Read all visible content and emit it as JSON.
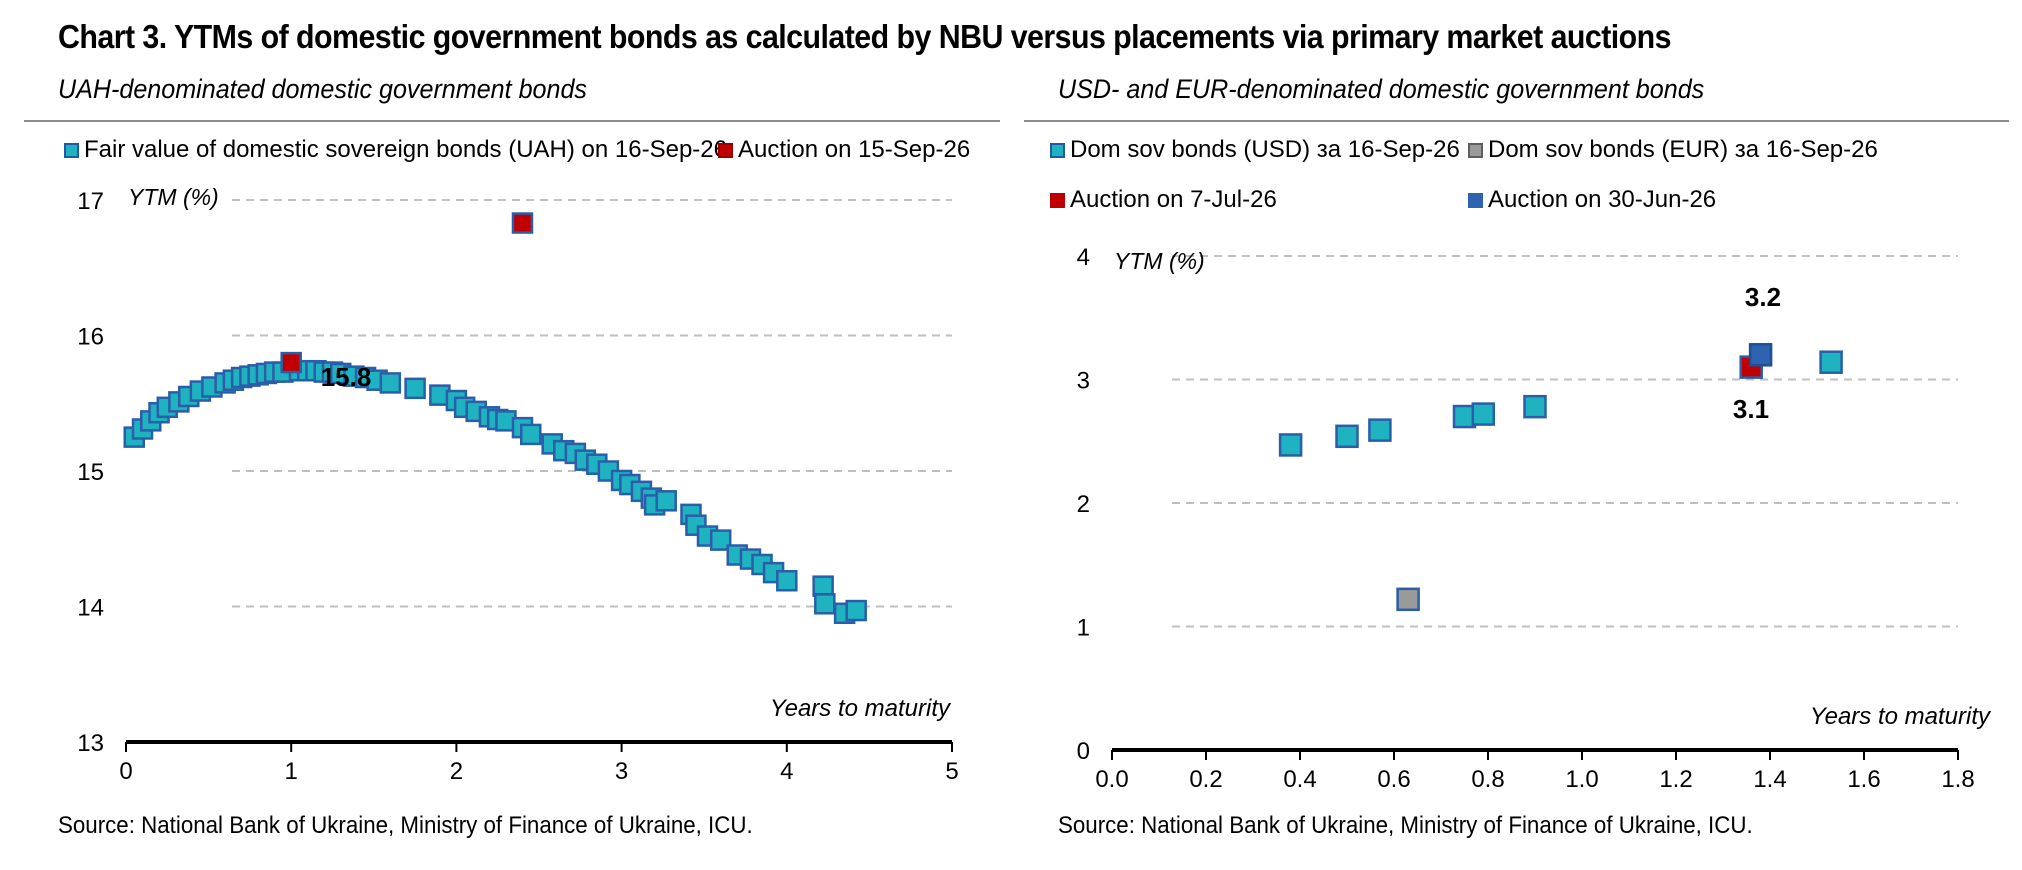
{
  "title": "Chart 3. YTMs of domestic government bonds as calculated by NBU versus placements via primary market auctions",
  "colors": {
    "fill_teal": "#1fb3c1",
    "edge_blue": "#2a5ea8",
    "red": "#c00000",
    "gray": "#9a9a9a",
    "blue": "#2e63b0",
    "grid": "#bfbfbf"
  },
  "left_panel": {
    "subtitle": "UAH-denominated domestic government bonds",
    "source": "Source: National Bank of Ukraine, Ministry of Finance of Ukraine, ICU.",
    "legend": [
      {
        "label": "Fair value of domestic sovereign bonds (UAH) on 16-Sep-26",
        "swatch": "teal"
      },
      {
        "label": "Auction on 15-Sep-26",
        "swatch": "red"
      }
    ]
  },
  "right_panel": {
    "subtitle": "USD- and EUR-denominated domestic government bonds",
    "source": "Source: National Bank of Ukraine, Ministry of Finance of Ukraine, ICU.",
    "legend": [
      {
        "label": "Dom sov bonds (USD) за 16-Sep-26",
        "swatch": "teal"
      },
      {
        "label": "Dom sov bonds (EUR) за 16-Sep-26",
        "swatch": "gray"
      },
      {
        "label": "Auction on 7-Jul-26",
        "swatch": "red"
      },
      {
        "label": "Auction on 30-Jun-26",
        "swatch": "blue"
      }
    ]
  },
  "chart_data": [
    {
      "type": "scatter",
      "ylabel": "YTM (%)",
      "xlabel": "Years to maturity",
      "xlim": [
        0,
        5
      ],
      "ylim": [
        13,
        17
      ],
      "xticks": [
        0,
        1,
        2,
        3,
        4,
        5
      ],
      "yticks": [
        13,
        14,
        15,
        16,
        17
      ],
      "grid": true,
      "series": [
        {
          "name": "Fair value of domestic sovereign bonds (UAH) on 16-Sep-26",
          "color": "teal",
          "points": [
            [
              0.05,
              15.25
            ],
            [
              0.1,
              15.31
            ],
            [
              0.15,
              15.37
            ],
            [
              0.2,
              15.43
            ],
            [
              0.25,
              15.47
            ],
            [
              0.32,
              15.51
            ],
            [
              0.38,
              15.55
            ],
            [
              0.45,
              15.59
            ],
            [
              0.52,
              15.62
            ],
            [
              0.6,
              15.65
            ],
            [
              0.65,
              15.67
            ],
            [
              0.7,
              15.69
            ],
            [
              0.75,
              15.7
            ],
            [
              0.8,
              15.71
            ],
            [
              0.85,
              15.72
            ],
            [
              0.9,
              15.73
            ],
            [
              0.95,
              15.73
            ],
            [
              1.05,
              15.74
            ],
            [
              1.1,
              15.74
            ],
            [
              1.15,
              15.74
            ],
            [
              1.2,
              15.73
            ],
            [
              1.25,
              15.73
            ],
            [
              1.3,
              15.72
            ],
            [
              1.38,
              15.7
            ],
            [
              1.45,
              15.69
            ],
            [
              1.52,
              15.67
            ],
            [
              1.6,
              15.65
            ],
            [
              1.75,
              15.61
            ],
            [
              1.9,
              15.56
            ],
            [
              2.0,
              15.52
            ],
            [
              2.05,
              15.47
            ],
            [
              2.12,
              15.44
            ],
            [
              2.2,
              15.4
            ],
            [
              2.25,
              15.38
            ],
            [
              2.3,
              15.37
            ],
            [
              2.4,
              15.32
            ],
            [
              2.45,
              15.27
            ],
            [
              2.58,
              15.2
            ],
            [
              2.65,
              15.15
            ],
            [
              2.72,
              15.13
            ],
            [
              2.78,
              15.08
            ],
            [
              2.85,
              15.05
            ],
            [
              2.92,
              15.0
            ],
            [
              3.0,
              14.93
            ],
            [
              3.05,
              14.9
            ],
            [
              3.12,
              14.85
            ],
            [
              3.18,
              14.8
            ],
            [
              3.2,
              14.75
            ],
            [
              3.27,
              14.78
            ],
            [
              3.42,
              14.68
            ],
            [
              3.45,
              14.6
            ],
            [
              3.52,
              14.52
            ],
            [
              3.6,
              14.49
            ],
            [
              3.7,
              14.38
            ],
            [
              3.78,
              14.35
            ],
            [
              3.85,
              14.31
            ],
            [
              3.92,
              14.25
            ],
            [
              4.0,
              14.19
            ],
            [
              4.22,
              14.15
            ],
            [
              4.23,
              14.02
            ],
            [
              4.35,
              13.95
            ],
            [
              4.42,
              13.97
            ]
          ]
        },
        {
          "name": "Auction on 15-Sep-26",
          "color": "red",
          "points": [
            [
              1.0,
              15.8
            ],
            [
              2.4,
              16.83
            ]
          ]
        }
      ],
      "annotations": [
        {
          "text": "15.8",
          "x": 1.0,
          "y": 15.8
        }
      ]
    },
    {
      "type": "scatter",
      "ylabel": "YTM (%)",
      "xlabel": "Years to maturity",
      "xlim": [
        0,
        1.8
      ],
      "ylim": [
        0,
        4
      ],
      "xticks": [
        0.0,
        0.2,
        0.4,
        0.6,
        0.8,
        1.0,
        1.2,
        1.4,
        1.6,
        1.8
      ],
      "yticks": [
        0,
        1,
        2,
        3,
        4
      ],
      "grid": true,
      "series": [
        {
          "name": "Dom sov bonds (USD) за 16-Sep-26",
          "color": "teal",
          "points": [
            [
              0.38,
              2.47
            ],
            [
              0.5,
              2.54
            ],
            [
              0.57,
              2.59
            ],
            [
              0.75,
              2.7
            ],
            [
              0.79,
              2.72
            ],
            [
              0.9,
              2.78
            ],
            [
              1.53,
              3.14
            ]
          ]
        },
        {
          "name": "Dom sov bonds (EUR) за 16-Sep-26",
          "color": "gray",
          "points": [
            [
              0.63,
              1.22
            ]
          ]
        },
        {
          "name": "Auction on 7-Jul-26",
          "color": "red",
          "points": [
            [
              1.36,
              3.1
            ]
          ]
        },
        {
          "name": "Auction on 30-Jun-26",
          "color": "blue",
          "points": [
            [
              1.38,
              3.2
            ]
          ]
        }
      ],
      "annotations": [
        {
          "text": "3.2",
          "x": 1.38,
          "y": 3.2
        },
        {
          "text": "3.1",
          "x": 1.36,
          "y": 3.1
        }
      ]
    }
  ]
}
